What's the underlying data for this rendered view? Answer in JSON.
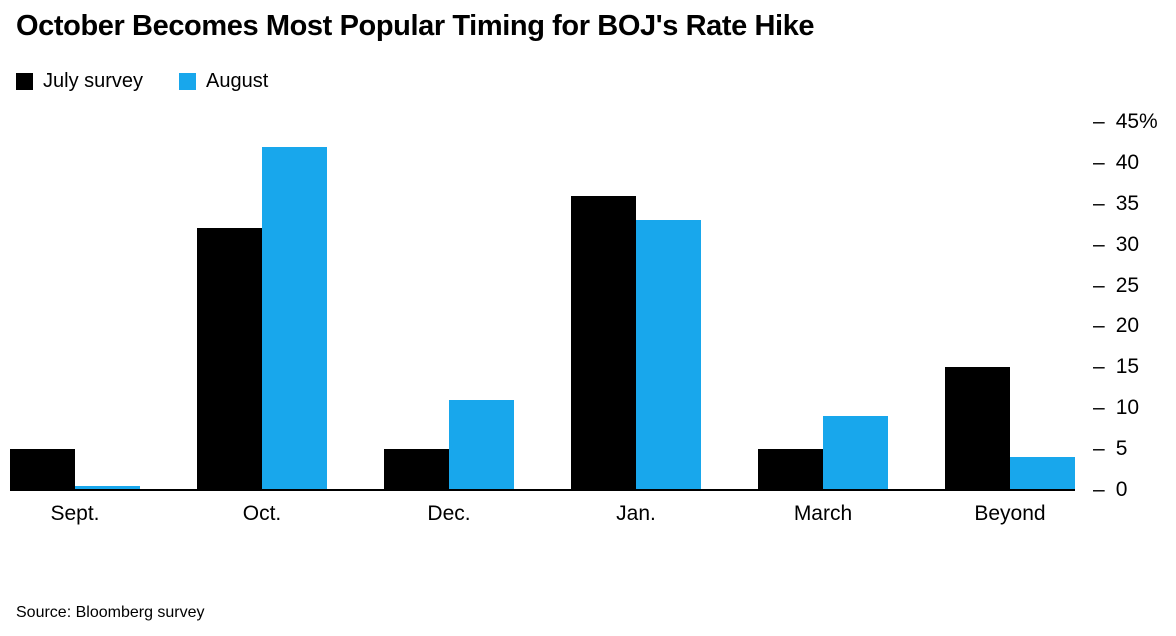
{
  "title": "October Becomes Most Popular Timing for BOJ's Rate Hike",
  "legend": [
    {
      "label": "July survey",
      "color": "#000000"
    },
    {
      "label": "August",
      "color": "#18a7ec"
    }
  ],
  "source": "Source: Bloomberg survey",
  "chart_data": {
    "type": "bar",
    "title": "October Becomes Most Popular Timing for BOJ's Rate Hike",
    "categories": [
      "Sept.",
      "Oct.",
      "Dec.",
      "Jan.",
      "March",
      "Beyond"
    ],
    "series": [
      {
        "name": "July survey",
        "color": "#000000",
        "values": [
          5,
          32,
          5,
          36,
          5,
          15
        ]
      },
      {
        "name": "August",
        "color": "#18a7ec",
        "values": [
          0.5,
          42,
          11,
          33,
          9,
          4
        ]
      }
    ],
    "xlabel": "",
    "ylabel": "",
    "ylim": [
      0,
      45
    ],
    "yticks": [
      {
        "value": 45,
        "label": "45%"
      },
      {
        "value": 40,
        "label": "40"
      },
      {
        "value": 35,
        "label": "35"
      },
      {
        "value": 30,
        "label": "30"
      },
      {
        "value": 25,
        "label": "25"
      },
      {
        "value": 20,
        "label": "20"
      },
      {
        "value": 15,
        "label": "15"
      },
      {
        "value": 10,
        "label": "10"
      },
      {
        "value": 5,
        "label": "5"
      },
      {
        "value": 0,
        "label": "0"
      }
    ],
    "grid": false,
    "legend_position": "top-left",
    "y_axis_side": "right"
  }
}
